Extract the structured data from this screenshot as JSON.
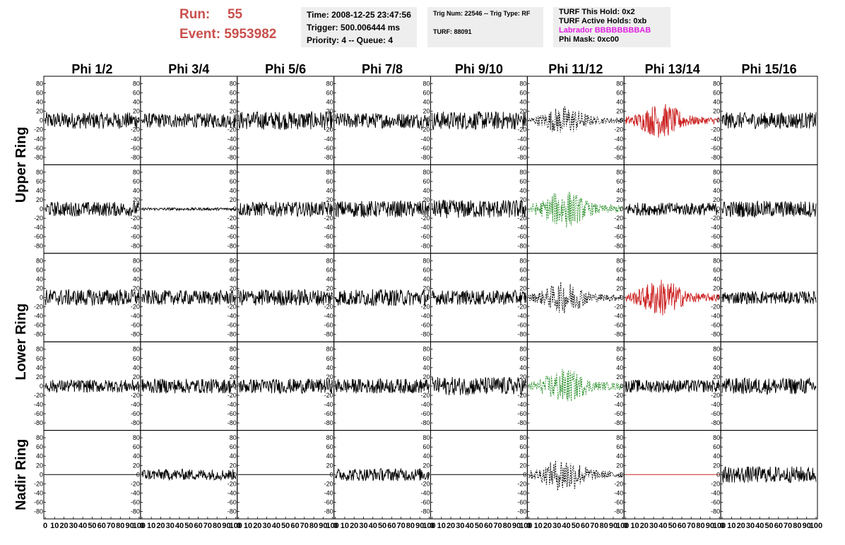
{
  "header": {
    "run_label": "Run:",
    "run_value": "55",
    "event_label": "Event:",
    "event_value": "5953982",
    "time_box": [
      "Time: 2008-12-25 23:47:56",
      "Trigger: 500.006444 ms",
      "Priority: 4 -- Queue: 4"
    ],
    "trig_box": [
      "Trig Num: 22546 -- Trig Type: RF",
      "TURF: 88091"
    ],
    "turf_box": {
      "this_hold": "TURF This Hold: 0x2",
      "active_holds": "TURF Active Holds: 0xb",
      "labrador": "Labrador BBBBBBBBAB",
      "phi_mask": "Phi Mask: 0xc00"
    }
  },
  "colors": {
    "header_accent": "#c9504c",
    "labrador": "#e020e0",
    "trace_default": "#000000",
    "trace_red": "#cc2222",
    "trace_green": "#228b22",
    "info_box_bg": "#eeeeee"
  },
  "chart_data": {
    "type": "line",
    "column_titles": [
      "Phi 1/2",
      "Phi 3/4",
      "Phi 5/6",
      "Phi 7/8",
      "Phi 9/10",
      "Phi 11/12",
      "Phi 13/14",
      "Phi 15/16"
    ],
    "ring_labels": [
      "Upper Ring",
      "Lower Ring",
      "Nadir Ring"
    ],
    "ylim": [
      -90,
      90
    ],
    "xlim": [
      0,
      100
    ],
    "y_ticks": [
      80,
      60,
      40,
      20,
      0,
      -20,
      -40,
      -60,
      -80
    ],
    "x_tick_labels": [
      "0",
      "10",
      "20",
      "30",
      "40",
      "50",
      "60",
      "70",
      "80",
      "90",
      "100"
    ],
    "panels": [
      {
        "row": 0,
        "col": 0,
        "style": "solid",
        "color": "trace_default",
        "amp": 18
      },
      {
        "row": 0,
        "col": 1,
        "style": "solid",
        "color": "trace_default",
        "amp": 16
      },
      {
        "row": 0,
        "col": 2,
        "style": "solid",
        "color": "trace_default",
        "amp": 20
      },
      {
        "row": 0,
        "col": 3,
        "style": "solid",
        "color": "trace_default",
        "amp": 17
      },
      {
        "row": 0,
        "col": 4,
        "style": "solid",
        "color": "trace_default",
        "amp": 20
      },
      {
        "row": 0,
        "col": 5,
        "style": "dashed",
        "color": "trace_default",
        "amp": 18,
        "burst": true
      },
      {
        "row": 0,
        "col": 6,
        "style": "solid",
        "color": "trace_red",
        "amp": 22,
        "burst": true
      },
      {
        "row": 0,
        "col": 7,
        "style": "solid",
        "color": "trace_default",
        "amp": 18
      },
      {
        "row": 1,
        "col": 0,
        "style": "solid",
        "color": "trace_default",
        "amp": 16
      },
      {
        "row": 1,
        "col": 1,
        "style": "solid",
        "color": "trace_default",
        "amp": 3
      },
      {
        "row": 1,
        "col": 2,
        "style": "solid",
        "color": "trace_default",
        "amp": 16
      },
      {
        "row": 1,
        "col": 3,
        "style": "solid",
        "color": "trace_default",
        "amp": 18
      },
      {
        "row": 1,
        "col": 4,
        "style": "solid",
        "color": "trace_default",
        "amp": 20
      },
      {
        "row": 1,
        "col": 5,
        "style": "dashed",
        "color": "trace_green",
        "amp": 24,
        "burst": true
      },
      {
        "row": 1,
        "col": 6,
        "style": "solid",
        "color": "trace_default",
        "amp": 14
      },
      {
        "row": 1,
        "col": 7,
        "style": "solid",
        "color": "trace_default",
        "amp": 18
      },
      {
        "row": 2,
        "col": 0,
        "style": "solid",
        "color": "trace_default",
        "amp": 18
      },
      {
        "row": 2,
        "col": 1,
        "style": "solid",
        "color": "trace_default",
        "amp": 16
      },
      {
        "row": 2,
        "col": 2,
        "style": "solid",
        "color": "trace_default",
        "amp": 18
      },
      {
        "row": 2,
        "col": 3,
        "style": "solid",
        "color": "trace_default",
        "amp": 18
      },
      {
        "row": 2,
        "col": 4,
        "style": "solid",
        "color": "trace_default",
        "amp": 16
      },
      {
        "row": 2,
        "col": 5,
        "style": "dashed",
        "color": "trace_default",
        "amp": 20,
        "burst": true
      },
      {
        "row": 2,
        "col": 6,
        "style": "solid",
        "color": "trace_red",
        "amp": 24,
        "burst": true
      },
      {
        "row": 2,
        "col": 7,
        "style": "solid",
        "color": "trace_default",
        "amp": 14
      },
      {
        "row": 3,
        "col": 0,
        "style": "solid",
        "color": "trace_default",
        "amp": 14
      },
      {
        "row": 3,
        "col": 1,
        "style": "solid",
        "color": "trace_default",
        "amp": 16
      },
      {
        "row": 3,
        "col": 2,
        "style": "solid",
        "color": "trace_default",
        "amp": 16
      },
      {
        "row": 3,
        "col": 3,
        "style": "solid",
        "color": "trace_default",
        "amp": 16
      },
      {
        "row": 3,
        "col": 4,
        "style": "solid",
        "color": "trace_default",
        "amp": 20
      },
      {
        "row": 3,
        "col": 5,
        "style": "dashed",
        "color": "trace_green",
        "amp": 22,
        "burst": true
      },
      {
        "row": 3,
        "col": 6,
        "style": "solid",
        "color": "trace_default",
        "amp": 14
      },
      {
        "row": 3,
        "col": 7,
        "style": "solid",
        "color": "trace_default",
        "amp": 18
      },
      {
        "row": 4,
        "col": 0,
        "style": "flat",
        "color": "trace_default",
        "amp": 0
      },
      {
        "row": 4,
        "col": 1,
        "style": "solid",
        "color": "trace_default",
        "amp": 12
      },
      {
        "row": 4,
        "col": 2,
        "style": "flat",
        "color": "trace_default",
        "amp": 0
      },
      {
        "row": 4,
        "col": 3,
        "style": "solid",
        "color": "trace_default",
        "amp": 14
      },
      {
        "row": 4,
        "col": 4,
        "style": "flat",
        "color": "trace_default",
        "amp": 0
      },
      {
        "row": 4,
        "col": 5,
        "style": "dashed",
        "color": "trace_default",
        "amp": 22,
        "burst": true
      },
      {
        "row": 4,
        "col": 6,
        "style": "flat",
        "color": "trace_red",
        "amp": 0
      },
      {
        "row": 4,
        "col": 7,
        "style": "solid",
        "color": "trace_default",
        "amp": 18
      }
    ]
  }
}
